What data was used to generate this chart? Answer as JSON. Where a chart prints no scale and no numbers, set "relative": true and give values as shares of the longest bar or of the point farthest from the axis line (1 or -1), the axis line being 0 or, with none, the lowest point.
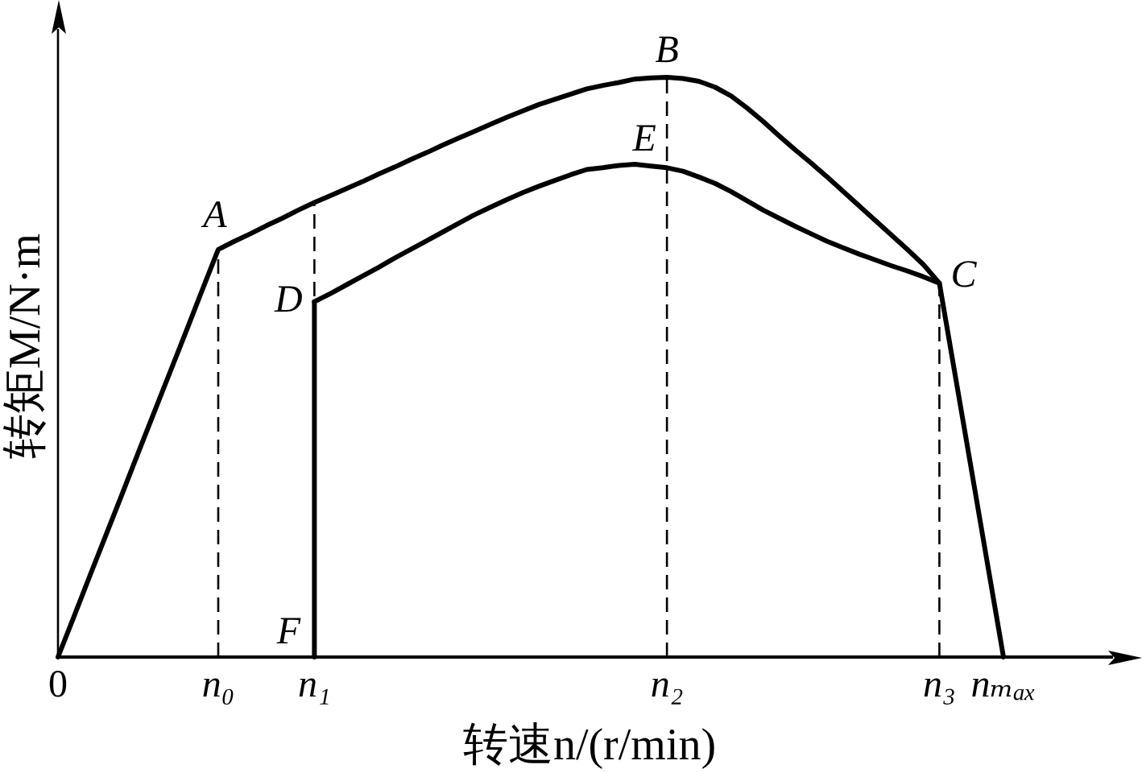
{
  "chart_data": {
    "type": "line",
    "relative": true,
    "tick_labels": "x",
    "marker": "none",
    "xlabel": "转速n/(r/min)",
    "ylabel": "转矩M/N·m",
    "categories": [
      "0",
      null,
      null,
      null,
      null,
      null,
      null,
      null,
      null,
      null,
      "n₀",
      null,
      null,
      null,
      null,
      null,
      "n₁",
      null,
      null,
      null,
      null,
      null,
      null,
      null,
      null,
      null,
      null,
      null,
      null,
      null,
      null,
      null,
      null,
      null,
      null,
      null,
      null,
      null,
      "n₂",
      null,
      null,
      null,
      null,
      null,
      null,
      null,
      null,
      null,
      null,
      null,
      null,
      null,
      null,
      null,
      null,
      "n₃",
      null,
      null,
      null,
      "nₘₐₓ"
    ],
    "series": [
      {
        "color": "#000000",
        "values": [
          0,
          0.07,
          0.141,
          0.211,
          0.281,
          0.352,
          0.422,
          0.492,
          0.562,
          0.633,
          0.703,
          0.717,
          0.73,
          0.744,
          0.757,
          0.771,
          0.784,
          0.796,
          0.808,
          0.82,
          0.833,
          0.845,
          0.858,
          0.87,
          0.883,
          0.895,
          0.907,
          0.919,
          0.931,
          0.942,
          0.953,
          0.962,
          0.971,
          0.98,
          0.986,
          0.991,
          0.997,
          0.999,
          1,
          0.998,
          0.993,
          0.983,
          0.968,
          0.947,
          0.924,
          0.899,
          0.875,
          0.852,
          0.828,
          0.803,
          0.778,
          0.753,
          0.728,
          0.703,
          0.677,
          0.645,
          0.484,
          0.323,
          0.161,
          0
        ]
      },
      {
        "color": "#000000",
        "values": [
          null,
          null,
          null,
          null,
          null,
          null,
          null,
          null,
          null,
          null,
          null,
          null,
          null,
          null,
          null,
          null,
          0.613,
          0.627,
          0.642,
          0.657,
          0.672,
          0.688,
          0.703,
          0.718,
          0.733,
          0.748,
          0.763,
          0.776,
          0.789,
          0.801,
          0.812,
          0.822,
          0.832,
          0.841,
          0.844,
          0.848,
          0.85,
          0.847,
          0.844,
          0.838,
          0.828,
          0.817,
          0.803,
          0.787,
          0.771,
          0.757,
          0.743,
          0.73,
          0.717,
          0.706,
          0.695,
          0.685,
          0.675,
          0.666,
          0.656,
          0.645,
          null,
          null,
          null,
          null
        ]
      },
      {
        "color": "#000000",
        "x": [
          "n₁",
          "n₁"
        ],
        "values": [
          0,
          0.613
        ]
      }
    ],
    "ref_lines": [
      {
        "axis": "x",
        "value": "n₀",
        "line_style": "dashed",
        "color": "#000000"
      },
      {
        "axis": "x",
        "value": "n₁",
        "line_style": "dashed",
        "color": "#000000"
      },
      {
        "axis": "x",
        "value": "n₂",
        "line_style": "dashed",
        "color": "#000000"
      },
      {
        "axis": "x",
        "value": "n₃",
        "line_style": "dashed",
        "color": "#000000"
      }
    ],
    "annotations": [
      {
        "text": "A",
        "x": "n₀",
        "y": 0.703
      },
      {
        "text": "B",
        "x": "n₂",
        "y": 1
      },
      {
        "text": "C",
        "x": "n₃",
        "y": 0.645
      },
      {
        "text": "D",
        "x": "n₁",
        "y": 0.613
      },
      {
        "text": "E",
        "x": "n₂",
        "y": 0.844
      },
      {
        "text": "F",
        "x": "n₁",
        "y": 0
      }
    ]
  }
}
